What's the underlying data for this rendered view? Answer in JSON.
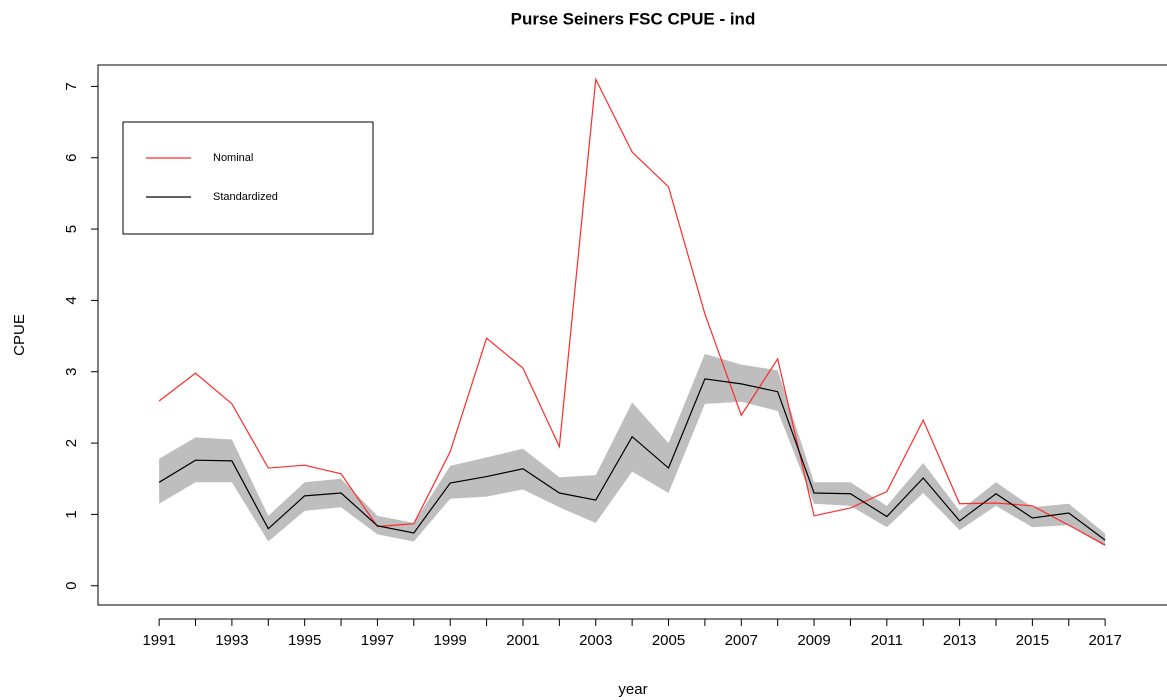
{
  "chart_data": {
    "type": "line",
    "title": "Purse Seiners FSC CPUE - ind",
    "x_label": "year",
    "y_label": "CPUE",
    "x": [
      1991,
      1992,
      1993,
      1994,
      1995,
      1996,
      1997,
      1998,
      1999,
      2000,
      2001,
      2002,
      2003,
      2004,
      2005,
      2006,
      2007,
      2008,
      2009,
      2010,
      2011,
      2012,
      2013,
      2014,
      2015,
      2016,
      2017
    ],
    "series": [
      {
        "name": "Nominal",
        "color": "#ff2a2a",
        "values": [
          2.59,
          2.98,
          2.55,
          1.65,
          1.69,
          1.57,
          0.83,
          0.87,
          1.88,
          3.47,
          3.05,
          1.95,
          7.1,
          6.08,
          5.59,
          3.81,
          2.39,
          3.18,
          0.98,
          1.09,
          1.32,
          2.32,
          1.15,
          1.16,
          1.12,
          0.85,
          0.57
        ]
      },
      {
        "name": "Standardized",
        "color": "#000000",
        "band_color": "#bebebe",
        "values": [
          1.45,
          1.76,
          1.75,
          0.8,
          1.26,
          1.3,
          0.84,
          0.74,
          1.44,
          1.53,
          1.64,
          1.3,
          1.2,
          2.09,
          1.65,
          2.9,
          2.83,
          2.72,
          1.3,
          1.29,
          0.97,
          1.51,
          0.91,
          1.29,
          0.95,
          1.02,
          0.64
        ],
        "lower": [
          1.15,
          1.45,
          1.45,
          0.62,
          1.05,
          1.1,
          0.72,
          0.62,
          1.22,
          1.25,
          1.35,
          1.1,
          0.88,
          1.6,
          1.3,
          2.55,
          2.58,
          2.45,
          1.15,
          1.12,
          0.82,
          1.3,
          0.78,
          1.12,
          0.82,
          0.85,
          0.55
        ],
        "upper": [
          1.78,
          2.08,
          2.05,
          0.98,
          1.45,
          1.5,
          0.98,
          0.88,
          1.68,
          1.8,
          1.92,
          1.52,
          1.55,
          2.57,
          2.0,
          3.25,
          3.1,
          3.02,
          1.45,
          1.45,
          1.12,
          1.72,
          1.05,
          1.45,
          1.1,
          1.15,
          0.73
        ]
      }
    ],
    "xlim": [
      1989.32,
      2018.7
    ],
    "ylim": [
      -0.27,
      7.3
    ],
    "xticks": [
      1991,
      {
        "value": 1992,
        "label": null
      },
      1993,
      {
        "value": 1994,
        "label": null
      },
      1995,
      {
        "value": 1996,
        "label": null
      },
      1997,
      {
        "value": 1998,
        "label": null
      },
      1999,
      {
        "value": 2000,
        "label": null
      },
      2001,
      {
        "value": 2002,
        "label": null
      },
      2003,
      {
        "value": 2004,
        "label": null
      },
      2005,
      {
        "value": 2006,
        "label": null
      },
      2007,
      {
        "value": 2008,
        "label": null
      },
      2009,
      {
        "value": 2010,
        "label": null
      },
      2011,
      {
        "value": 2012,
        "label": null
      },
      2013,
      {
        "value": 2014,
        "label": null
      },
      2015,
      {
        "value": 2016,
        "label": null
      },
      2017
    ],
    "yticks": [
      0,
      1,
      2,
      3,
      4,
      5,
      6,
      7
    ],
    "legend": "topleft"
  }
}
